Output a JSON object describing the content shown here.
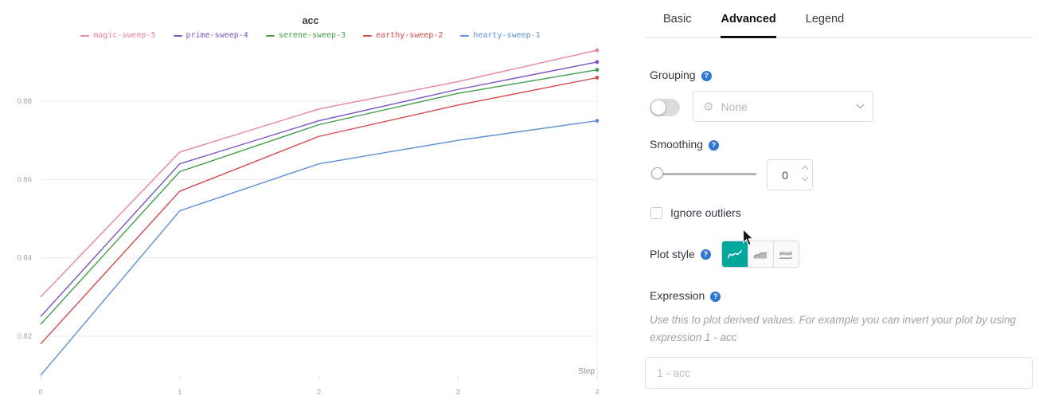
{
  "chart_data": {
    "type": "line",
    "title": "acc",
    "xlabel": "Step",
    "ylabel": "",
    "x": [
      0,
      1,
      2,
      3,
      4
    ],
    "xticks": [
      0,
      1,
      2,
      3,
      4
    ],
    "yticks": [
      0.82,
      0.84,
      0.86,
      0.88
    ],
    "xlim": [
      0,
      4
    ],
    "ylim": [
      0.807,
      0.896
    ],
    "grid": "horizontal",
    "legend_position": "top",
    "series": [
      {
        "name": "magic-sweep-5",
        "color": "#e8849e",
        "values": [
          0.83,
          0.867,
          0.878,
          0.885,
          0.893
        ]
      },
      {
        "name": "prime-sweep-4",
        "color": "#7a52c7",
        "values": [
          0.825,
          0.864,
          0.875,
          0.883,
          0.89
        ]
      },
      {
        "name": "serene-sweep-3",
        "color": "#3f9e49",
        "values": [
          0.823,
          0.862,
          0.874,
          0.882,
          0.888
        ]
      },
      {
        "name": "earthy-sweep-2",
        "color": "#d5484c",
        "values": [
          0.818,
          0.857,
          0.871,
          0.879,
          0.886
        ]
      },
      {
        "name": "hearty-sweep-1",
        "color": "#5d8fd5",
        "values": [
          0.81,
          0.852,
          0.864,
          0.87,
          0.875
        ]
      }
    ]
  },
  "panel": {
    "tabs": [
      {
        "label": "Basic",
        "active": false
      },
      {
        "label": "Advanced",
        "active": true
      },
      {
        "label": "Legend",
        "active": false
      }
    ],
    "grouping": {
      "label": "Grouping",
      "toggle_on": false,
      "dropdown_value": "None"
    },
    "smoothing": {
      "label": "Smoothing",
      "value": "0",
      "slider_value": 0
    },
    "ignore_outliers": {
      "label": "Ignore outliers",
      "checked": false
    },
    "plot_style": {
      "label": "Plot style",
      "selected_index": 0
    },
    "expression": {
      "label": "Expression",
      "help_text": "Use this to plot derived values. For example you can invert your plot by using expression 1 - acc",
      "placeholder": "1 - acc"
    }
  },
  "icons": {
    "help": "?",
    "gear": "⚙"
  },
  "colors": {
    "accent_teal": "#00a79d",
    "help_blue": "#2f77d1"
  }
}
